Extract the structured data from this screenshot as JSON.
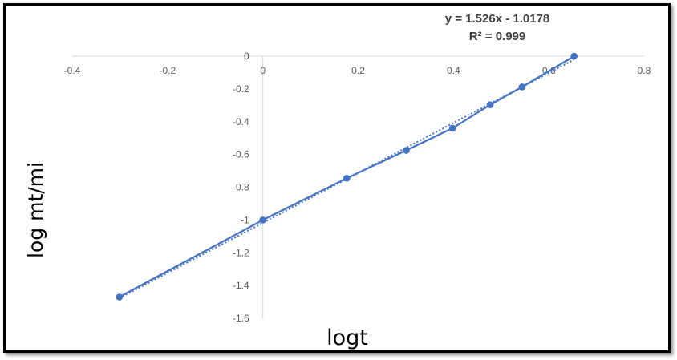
{
  "chart_data": {
    "type": "scatter",
    "xlabel": "logt",
    "ylabel": "log mt/mi",
    "xlim": [
      -0.4,
      0.8
    ],
    "ylim": [
      -1.6,
      0
    ],
    "xticks": [
      "-0.4",
      "-0.2",
      "0",
      "0.2",
      "0.4",
      "0.6",
      "0.8"
    ],
    "yticks": [
      "0",
      "-0.2",
      "-0.4",
      "-0.6",
      "-0.8",
      "-1",
      "-1.2",
      "-1.4",
      "-1.6"
    ],
    "grid": false,
    "series": [
      {
        "color": "#4472c4",
        "markers": true,
        "line": "solid",
        "x": [
          -0.301,
          0.0,
          0.176,
          0.301,
          0.398,
          0.477,
          0.544,
          0.653
        ],
        "y": [
          -1.47,
          -1.0,
          -0.745,
          -0.575,
          -0.44,
          -0.297,
          -0.188,
          0.0
        ]
      }
    ],
    "trendline": {
      "type": "linear",
      "style": "dotted",
      "color": "#4472c4",
      "slope": 1.526,
      "intercept": -1.0178,
      "equation_label": "y = 1.526x - 1.0178",
      "r2_label": "R² = 0.999"
    }
  }
}
